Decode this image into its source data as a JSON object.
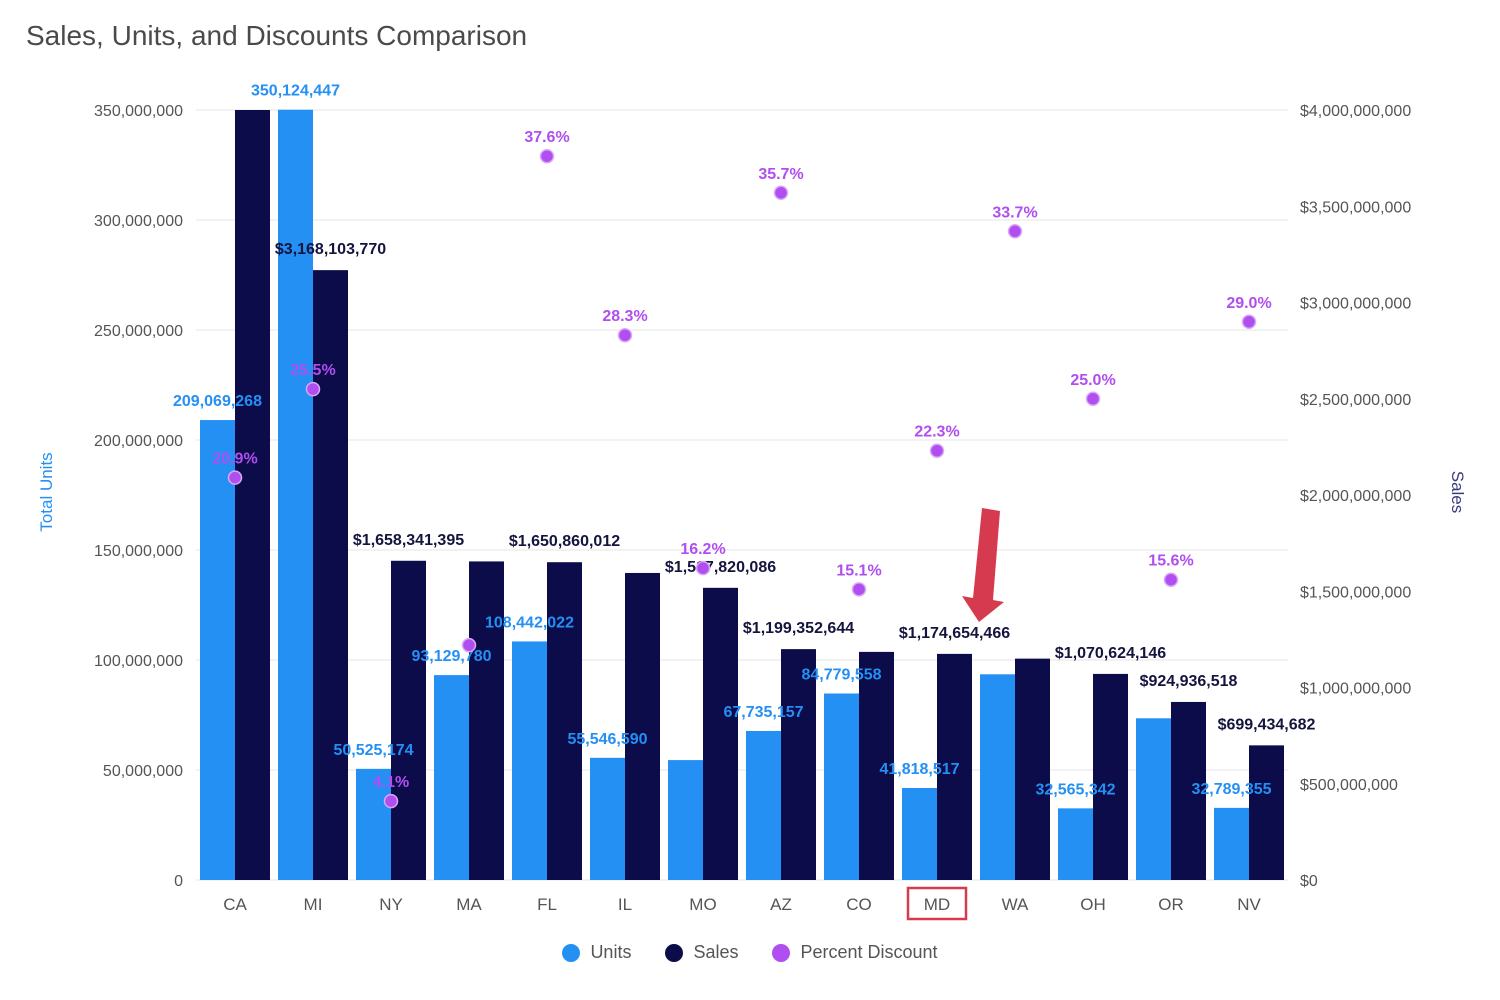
{
  "chart_data": {
    "type": "bar",
    "title": "Sales, Units, and Discounts Comparison",
    "categories": [
      "CA",
      "MI",
      "NY",
      "MA",
      "FL",
      "IL",
      "MO",
      "AZ",
      "CO",
      "MD",
      "WA",
      "OH",
      "OR",
      "NV"
    ],
    "series": [
      {
        "name": "Units",
        "axis": "left",
        "color": "#2490f4",
        "values": [
          209069268,
          350124447,
          50525174,
          93129780,
          108442022,
          55546590,
          54500000,
          67735157,
          84779558,
          41818517,
          93500000,
          32565342,
          73500000,
          32789355
        ],
        "labels": [
          "209,069,268",
          "350,124,447",
          "50,525,174",
          "93,129,780",
          "108,442,022",
          "55,546,590",
          "",
          "67,735,157",
          "84,779,558",
          "41,818,517",
          "",
          "32,565,342",
          "",
          "32,789,355"
        ]
      },
      {
        "name": "Sales",
        "axis": "right",
        "color": "#0c0c4a",
        "values": [
          4000000000,
          3168103770,
          1658341395,
          1655000000,
          1650860012,
          1595000000,
          1517820086,
          1199352644,
          1185000000,
          1174654466,
          1150000000,
          1070624146,
          924936518,
          699434682
        ],
        "labels": [
          "",
          "$3,168,103,770",
          "$1,658,341,395",
          "",
          "$1,650,860,012",
          "",
          "$1,517,820,086",
          "$1,199,352,644",
          "",
          "$1,174,654,466",
          "",
          "$1,070,624,146",
          "$924,936,518",
          "$699,434,682"
        ]
      },
      {
        "name": "Percent Discount",
        "axis": "right-percent",
        "color": "#b04ef0",
        "values": [
          20.9,
          25.5,
          4.1,
          12.2,
          37.6,
          28.3,
          16.2,
          35.7,
          15.1,
          22.3,
          33.7,
          25.0,
          15.6,
          29.0
        ],
        "labels": [
          "20.9%",
          "25.5%",
          "4.1%",
          "",
          "37.6%",
          "28.3%",
          "16.2%",
          "35.7%",
          "15.1%",
          "22.3%",
          "33.7%",
          "25.0%",
          "15.6%",
          "29.0%"
        ]
      }
    ],
    "left_axis": {
      "label": "Total Units",
      "ylim": [
        0,
        350000000
      ],
      "ticks": [
        0,
        50000000,
        100000000,
        150000000,
        200000000,
        250000000,
        300000000,
        350000000
      ],
      "tick_labels": [
        "0",
        "50,000,000",
        "100,000,000",
        "150,000,000",
        "200,000,000",
        "250,000,000",
        "300,000,000",
        "350,000,000"
      ]
    },
    "right_axis": {
      "label": "Sales",
      "ylim": [
        0,
        4000000000
      ],
      "ticks": [
        0,
        500000000,
        1000000000,
        1500000000,
        2000000000,
        2500000000,
        3000000000,
        3500000000,
        4000000000
      ],
      "tick_labels": [
        "$0",
        "$500,000,000",
        "$1,000,000,000",
        "$1,500,000,000",
        "$2,000,000,000",
        "$2,500,000,000",
        "$3,000,000,000",
        "$3,500,000,000",
        "$4,000,000,000"
      ]
    },
    "percent_axis_range": [
      0,
      40
    ],
    "highlighted_category": "MD",
    "highlight_color": "#d63a4f",
    "legend_position": "bottom",
    "grid": true
  }
}
